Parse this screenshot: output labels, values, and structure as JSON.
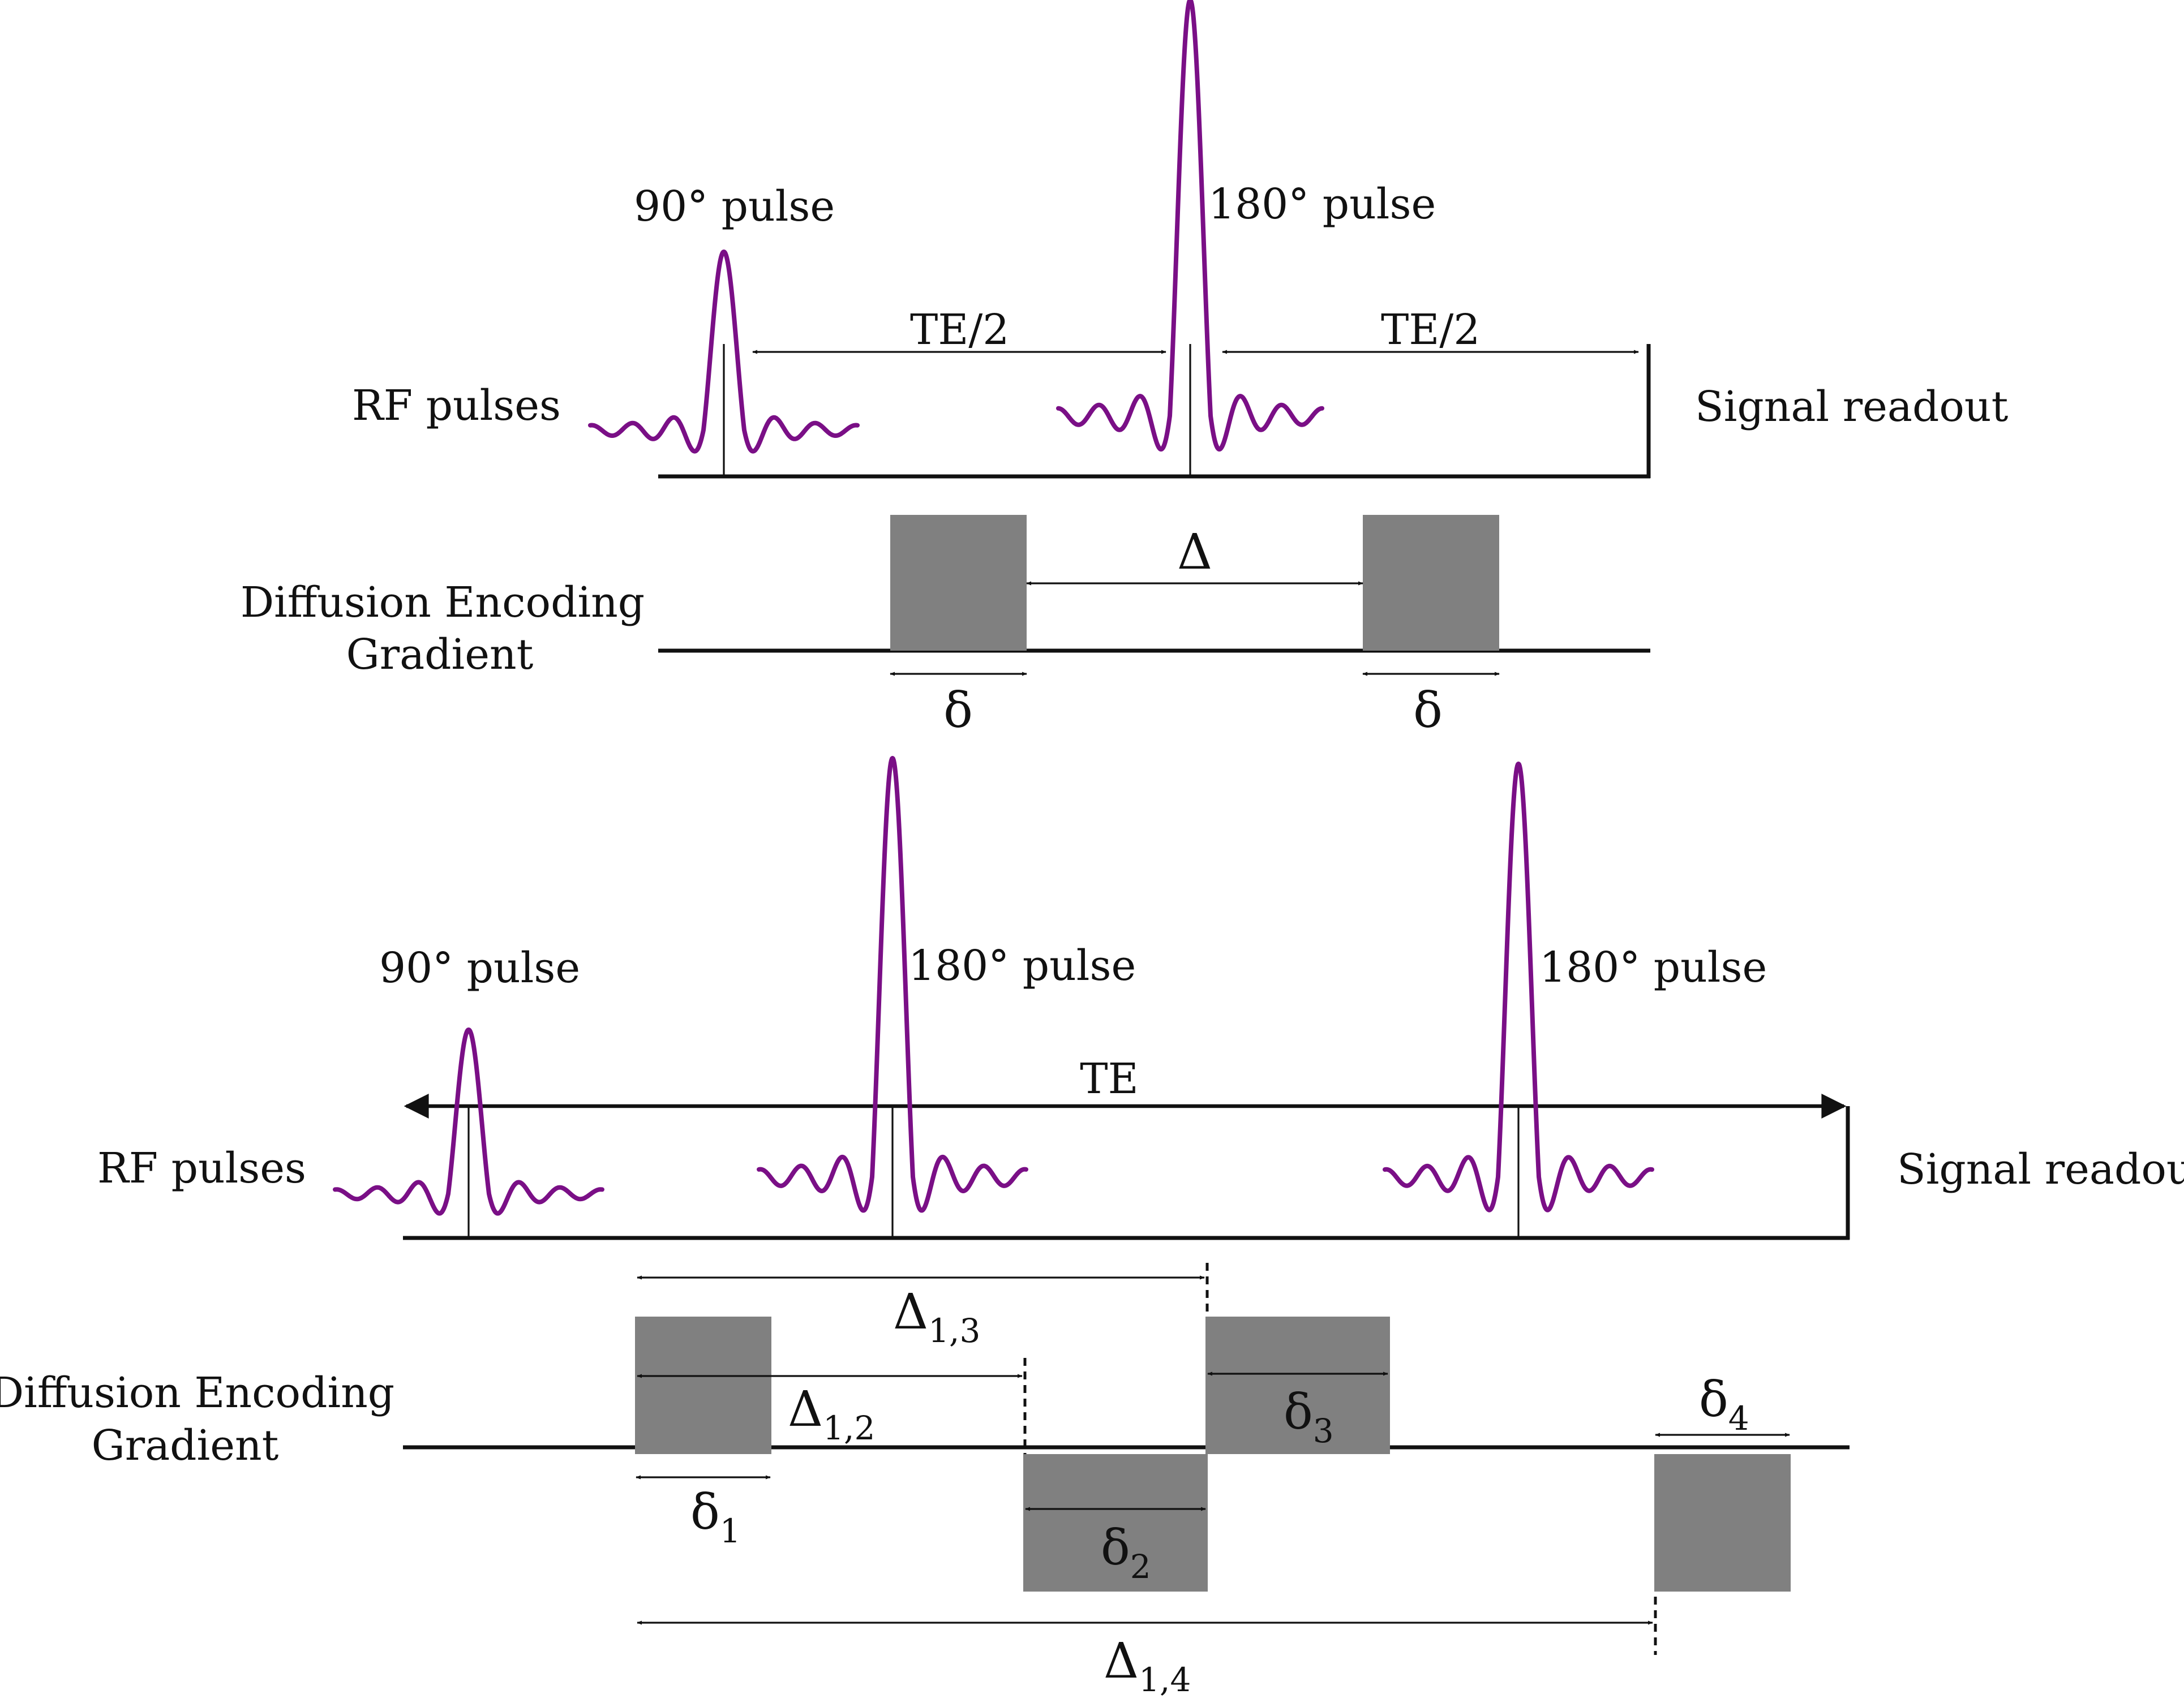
{
  "top": {
    "rf_label": "RF pulses",
    "gradient_label_line1": "Diffusion Encoding",
    "gradient_label_line2": "Gradient",
    "pulse_90_label": "90° pulse",
    "pulse_180_label": "180° pulse",
    "te_half_left": "TE/2",
    "te_half_right": "TE/2",
    "readout_label": "Signal readout",
    "big_delta": "Δ",
    "small_delta_left": "δ",
    "small_delta_right": "δ"
  },
  "bottom": {
    "rf_label": "RF pulses",
    "gradient_label_line1": "Diffusion Encoding",
    "gradient_label_line2": "Gradient",
    "pulse_90_label": "90° pulse",
    "pulse_180a_label": "180° pulse",
    "pulse_180b_label": "180° pulse",
    "te_label": "TE",
    "readout_label": "Signal readout",
    "big_delta_symbol": "Δ",
    "small_delta_symbol": "δ",
    "delta_13_sub": "1,3",
    "delta_12_sub": "1,2",
    "delta_14_sub": "1,4",
    "delta1_sub": "1",
    "delta2_sub": "2",
    "delta3_sub": "3",
    "delta4_sub": "4"
  },
  "colors": {
    "pulse": "#7a0f86",
    "gradient_block": "#808080",
    "line": "#111111"
  }
}
